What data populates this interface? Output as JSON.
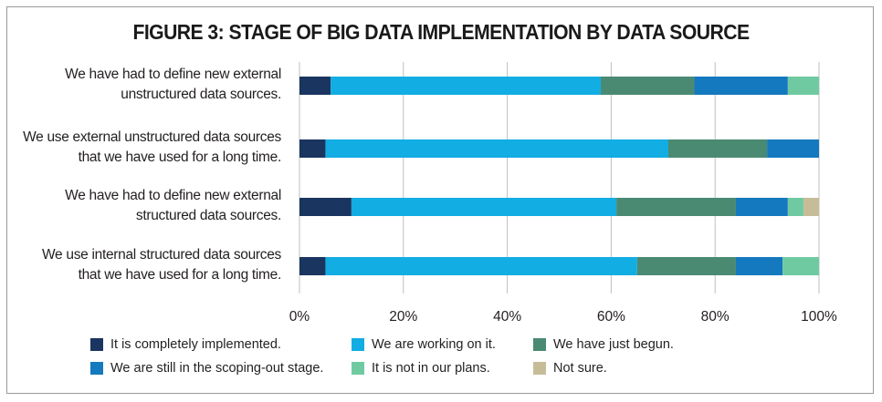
{
  "title": "FIGURE 3: STAGE OF BIG DATA IMPLEMENTATION BY DATA SOURCE",
  "colors": {
    "completely_implemented": "#1a3560",
    "working_on_it": "#12ade2",
    "just_begun": "#4a8a73",
    "scoping_out": "#1479bf",
    "not_in_plans": "#6fcaa1",
    "not_sure": "#c6bd98"
  },
  "chart_data": {
    "type": "bar",
    "orientation": "horizontal",
    "stacked": true,
    "categories": [
      "We have had to define new external unstructured data sources.",
      "We use external unstructured data sources that we have used for a long time.",
      "We have had to define new external structured data sources.",
      "We use internal structured data sources that we have used for a long time."
    ],
    "category_lines": [
      [
        "We have had to define new external",
        "unstructured data sources."
      ],
      [
        "We use external unstructured data sources",
        "that we have used for a long time."
      ],
      [
        "We have had to define new external",
        "structured data sources."
      ],
      [
        "We use internal structured data sources",
        "that we have used for a long time."
      ]
    ],
    "series": [
      {
        "name": "It is completely implemented.",
        "color_key": "completely_implemented",
        "values": [
          6,
          5,
          10,
          5
        ]
      },
      {
        "name": "We are working on it.",
        "color_key": "working_on_it",
        "values": [
          52,
          66,
          51,
          60
        ]
      },
      {
        "name": "We have just begun.",
        "color_key": "just_begun",
        "values": [
          18,
          19,
          23,
          19
        ]
      },
      {
        "name": "We are still in the scoping-out stage.",
        "color_key": "scoping_out",
        "values": [
          18,
          10,
          10,
          9
        ]
      },
      {
        "name": "It is not in our plans.",
        "color_key": "not_in_plans",
        "values": [
          6,
          0,
          3,
          7
        ]
      },
      {
        "name": "Not sure.",
        "color_key": "not_sure",
        "values": [
          0,
          0,
          3,
          0
        ]
      }
    ],
    "xlim": [
      0,
      100
    ],
    "ticks": [
      "0%",
      "20%",
      "40%",
      "60%",
      "80%",
      "100%"
    ],
    "tick_values": [
      0,
      20,
      40,
      60,
      80,
      100
    ],
    "grid": false,
    "legend_position": "bottom"
  }
}
